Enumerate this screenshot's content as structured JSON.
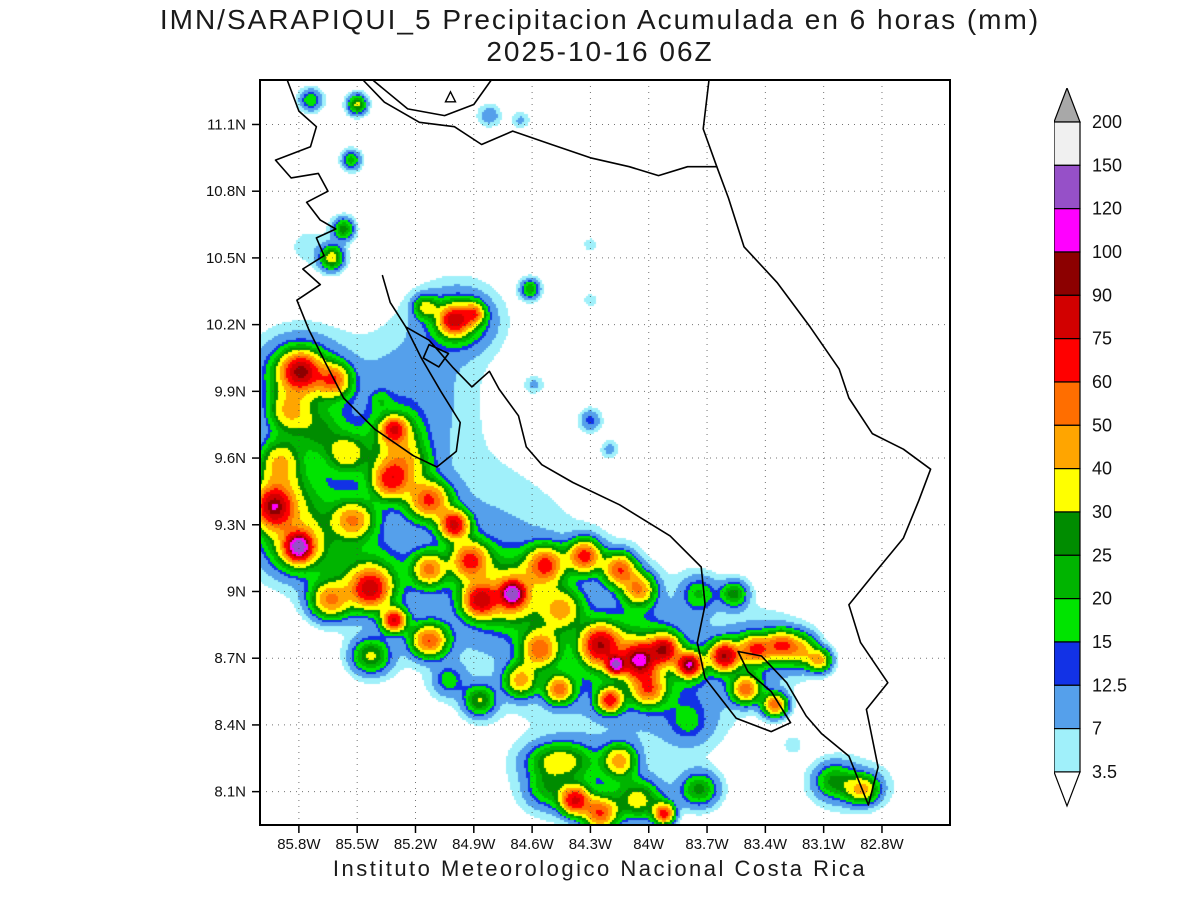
{
  "title": {
    "line1": "IMN/SARAPIQUI_5 Precipitacion Acumulada en 6 horas (mm)",
    "line2": "2025-10-16 06Z"
  },
  "footer": "Instituto Meteorologico Nacional Costa Rica",
  "chart_data": {
    "type": "heatmap",
    "model": "IMN/SARAPIQUI_5",
    "variable": "Precipitacion Acumulada en 6 horas",
    "units": "mm",
    "valid_time": "2025-10-16 06Z",
    "grid": true,
    "legend_position": "right",
    "extent": {
      "lon_left_w": 86.0,
      "lon_right_w": 82.45,
      "lat_top_n": 11.3,
      "lat_bottom_n": 7.95
    },
    "x_tick_labels": [
      "85.8W",
      "85.5W",
      "85.2W",
      "84.9W",
      "84.6W",
      "84.3W",
      "84W",
      "83.7W",
      "83.4W",
      "83.1W",
      "82.8W"
    ],
    "x_tick_values": [
      85.8,
      85.5,
      85.2,
      84.9,
      84.6,
      84.3,
      84.0,
      83.7,
      83.4,
      83.1,
      82.8
    ],
    "y_tick_labels": [
      "11.1N",
      "10.8N",
      "10.5N",
      "10.2N",
      "9.9N",
      "9.6N",
      "9.3N",
      "9N",
      "8.7N",
      "8.4N",
      "8.1N"
    ],
    "y_tick_values": [
      11.1,
      10.8,
      10.5,
      10.2,
      9.9,
      9.6,
      9.3,
      9.0,
      8.7,
      8.4,
      8.1
    ],
    "levels": [
      3.5,
      7,
      12.5,
      15,
      20,
      25,
      30,
      40,
      50,
      60,
      75,
      90,
      100,
      120,
      150,
      200
    ],
    "colors": [
      "#a0f0fa",
      "#55a0eb",
      "#1232e6",
      "#00e400",
      "#00b400",
      "#008c00",
      "#ffff00",
      "#ffa500",
      "#ff6e00",
      "#ff0000",
      "#d20000",
      "#8c0000",
      "#ff00ff",
      "#9650c8",
      "#f0f0f0",
      "#a8a8a8"
    ],
    "colorbar_labels": [
      "3.5",
      "7",
      "12.5",
      "15",
      "20",
      "25",
      "30",
      "40",
      "50",
      "60",
      "75",
      "90",
      "100",
      "120",
      "150",
      "200"
    ],
    "under_color": "#ffffff",
    "over_color": "#a8a8a8",
    "bumps": [
      [
        85.74,
        11.21,
        0.06,
        0.05,
        20
      ],
      [
        85.5,
        11.19,
        0.05,
        0.045,
        32
      ],
      [
        84.82,
        11.14,
        0.06,
        0.05,
        11
      ],
      [
        84.66,
        11.12,
        0.05,
        0.04,
        8
      ],
      [
        85.53,
        10.94,
        0.05,
        0.045,
        22
      ],
      [
        85.57,
        10.63,
        0.055,
        0.05,
        28
      ],
      [
        85.63,
        10.5,
        0.06,
        0.055,
        34
      ],
      [
        84.61,
        10.36,
        0.05,
        0.045,
        24
      ],
      [
        85.0,
        10.22,
        0.07,
        0.06,
        62
      ],
      [
        84.9,
        10.25,
        0.05,
        0.045,
        42
      ],
      [
        84.97,
        10.22,
        0.16,
        0.12,
        20
      ],
      [
        85.15,
        10.28,
        0.06,
        0.05,
        26
      ],
      [
        84.3,
        10.56,
        0.04,
        0.035,
        6
      ],
      [
        84.59,
        9.93,
        0.05,
        0.04,
        8
      ],
      [
        84.3,
        9.77,
        0.055,
        0.05,
        14
      ],
      [
        84.2,
        9.64,
        0.045,
        0.04,
        9
      ],
      [
        84.3,
        10.31,
        0.04,
        0.035,
        6
      ],
      [
        85.38,
        9.86,
        0.05,
        0.045,
        8
      ],
      [
        85.79,
        9.99,
        0.09,
        0.075,
        70
      ],
      [
        85.8,
        9.98,
        0.2,
        0.16,
        25
      ],
      [
        85.62,
        9.95,
        0.08,
        0.07,
        45
      ],
      [
        85.85,
        9.81,
        0.1,
        0.09,
        30
      ],
      [
        85.7,
        9.72,
        0.12,
        0.1,
        16
      ],
      [
        85.55,
        9.62,
        0.1,
        0.08,
        26
      ],
      [
        85.9,
        9.58,
        0.1,
        0.1,
        32
      ],
      [
        85.93,
        9.38,
        0.08,
        0.08,
        65
      ],
      [
        85.9,
        9.4,
        0.16,
        0.14,
        26
      ],
      [
        85.8,
        9.2,
        0.055,
        0.05,
        95
      ],
      [
        85.8,
        9.2,
        0.12,
        0.1,
        35
      ],
      [
        85.78,
        9.25,
        0.26,
        0.2,
        15
      ],
      [
        85.52,
        9.32,
        0.1,
        0.08,
        40
      ],
      [
        85.33,
        9.5,
        0.09,
        0.08,
        52
      ],
      [
        85.25,
        9.57,
        0.12,
        0.1,
        28
      ],
      [
        85.31,
        9.73,
        0.06,
        0.05,
        46
      ],
      [
        85.3,
        9.7,
        0.12,
        0.1,
        24
      ],
      [
        85.13,
        9.41,
        0.1,
        0.08,
        55
      ],
      [
        85.0,
        9.3,
        0.07,
        0.06,
        72
      ],
      [
        84.92,
        9.14,
        0.09,
        0.08,
        55
      ],
      [
        85.13,
        9.1,
        0.08,
        0.07,
        45
      ],
      [
        85.43,
        9.01,
        0.09,
        0.08,
        62
      ],
      [
        85.45,
        9.05,
        0.18,
        0.14,
        22
      ],
      [
        85.64,
        8.96,
        0.1,
        0.08,
        45
      ],
      [
        85.31,
        8.87,
        0.06,
        0.05,
        70
      ],
      [
        85.13,
        8.78,
        0.09,
        0.07,
        55
      ],
      [
        85.43,
        8.71,
        0.1,
        0.08,
        30
      ],
      [
        85.03,
        8.6,
        0.08,
        0.07,
        15
      ],
      [
        84.87,
        8.51,
        0.08,
        0.07,
        28
      ],
      [
        84.87,
        8.96,
        0.08,
        0.07,
        66
      ],
      [
        84.7,
        8.99,
        0.05,
        0.045,
        90
      ],
      [
        84.7,
        8.98,
        0.11,
        0.1,
        30
      ],
      [
        84.72,
        9.0,
        0.2,
        0.17,
        18
      ],
      [
        84.53,
        9.12,
        0.09,
        0.08,
        55
      ],
      [
        84.33,
        9.16,
        0.08,
        0.07,
        62
      ],
      [
        84.15,
        9.1,
        0.08,
        0.07,
        55
      ],
      [
        84.05,
        9.01,
        0.08,
        0.07,
        45
      ],
      [
        84.45,
        8.92,
        0.1,
        0.09,
        35
      ],
      [
        84.25,
        8.76,
        0.09,
        0.08,
        70
      ],
      [
        84.05,
        8.69,
        0.08,
        0.07,
        80
      ],
      [
        84.17,
        8.67,
        0.04,
        0.035,
        95
      ],
      [
        83.92,
        8.74,
        0.07,
        0.06,
        70
      ],
      [
        83.79,
        8.67,
        0.06,
        0.05,
        90
      ],
      [
        84.1,
        8.72,
        0.22,
        0.15,
        18
      ],
      [
        84.56,
        8.74,
        0.09,
        0.08,
        50
      ],
      [
        84.66,
        8.6,
        0.08,
        0.07,
        40
      ],
      [
        84.46,
        8.56,
        0.07,
        0.06,
        50
      ],
      [
        84.2,
        8.51,
        0.06,
        0.05,
        62
      ],
      [
        84.0,
        8.56,
        0.08,
        0.07,
        45
      ],
      [
        83.61,
        8.71,
        0.07,
        0.06,
        80
      ],
      [
        83.45,
        8.74,
        0.08,
        0.06,
        52
      ],
      [
        83.32,
        8.76,
        0.07,
        0.06,
        45
      ],
      [
        83.22,
        8.74,
        0.08,
        0.07,
        35
      ],
      [
        83.12,
        8.69,
        0.06,
        0.05,
        40
      ],
      [
        83.5,
        8.56,
        0.07,
        0.06,
        50
      ],
      [
        83.35,
        8.49,
        0.06,
        0.05,
        55
      ],
      [
        83.74,
        8.99,
        0.09,
        0.08,
        18
      ],
      [
        83.56,
        8.99,
        0.07,
        0.06,
        26
      ],
      [
        83.4,
        8.73,
        0.22,
        0.16,
        12
      ],
      [
        83.79,
        8.4,
        0.12,
        0.1,
        10
      ],
      [
        84.46,
        8.24,
        0.16,
        0.08,
        30
      ],
      [
        84.53,
        8.11,
        0.1,
        0.08,
        15
      ],
      [
        84.38,
        8.06,
        0.07,
        0.06,
        68
      ],
      [
        84.25,
        8.0,
        0.08,
        0.07,
        55
      ],
      [
        84.05,
        8.06,
        0.12,
        0.09,
        30
      ],
      [
        83.92,
        8.0,
        0.05,
        0.045,
        62
      ],
      [
        83.74,
        8.11,
        0.1,
        0.08,
        26
      ],
      [
        84.15,
        8.24,
        0.08,
        0.07,
        40
      ],
      [
        84.35,
        8.12,
        0.3,
        0.15,
        10
      ],
      [
        83.05,
        8.15,
        0.1,
        0.08,
        20
      ],
      [
        82.9,
        8.11,
        0.08,
        0.06,
        36
      ],
      [
        82.95,
        8.13,
        0.2,
        0.12,
        9
      ],
      [
        83.26,
        8.31,
        0.05,
        0.045,
        6
      ],
      [
        85.6,
        9.6,
        0.45,
        0.4,
        10
      ],
      [
        84.9,
        9.1,
        0.5,
        0.45,
        10
      ],
      [
        84.2,
        8.7,
        0.45,
        0.4,
        10
      ],
      [
        85.2,
        9.9,
        0.3,
        0.28,
        8
      ],
      [
        83.8,
        8.6,
        0.3,
        0.25,
        8
      ],
      [
        85.75,
        10.55,
        0.12,
        0.1,
        5
      ],
      [
        85.0,
        10.22,
        0.25,
        0.2,
        6
      ]
    ],
    "coastlines": [
      [
        [
          85.86,
          11.3
        ],
        [
          85.8,
          11.16
        ],
        [
          85.71,
          11.09
        ],
        [
          85.74,
          11.0
        ],
        [
          85.92,
          10.94
        ],
        [
          85.84,
          10.86
        ],
        [
          85.7,
          10.88
        ],
        [
          85.65,
          10.8
        ],
        [
          85.76,
          10.75
        ],
        [
          85.69,
          10.67
        ],
        [
          85.61,
          10.63
        ],
        [
          85.71,
          10.59
        ],
        [
          85.67,
          10.51
        ],
        [
          85.78,
          10.45
        ],
        [
          85.69,
          10.38
        ],
        [
          85.81,
          10.31
        ],
        [
          85.75,
          10.18
        ],
        [
          85.67,
          10.04
        ],
        [
          85.57,
          9.87
        ],
        [
          85.41,
          9.73
        ],
        [
          85.21,
          9.61
        ],
        [
          85.09,
          9.56
        ],
        [
          84.99,
          9.63
        ],
        [
          84.97,
          9.76
        ],
        [
          85.07,
          9.9
        ],
        [
          85.17,
          10.05
        ],
        [
          85.25,
          10.19
        ],
        [
          85.13,
          10.13
        ],
        [
          85.01,
          10.01
        ],
        [
          84.91,
          9.92
        ],
        [
          84.82,
          9.99
        ],
        [
          84.77,
          9.91
        ],
        [
          84.67,
          9.79
        ],
        [
          84.63,
          9.65
        ],
        [
          84.55,
          9.57
        ],
        [
          84.39,
          9.49
        ],
        [
          84.15,
          9.39
        ],
        [
          83.89,
          9.25
        ],
        [
          83.73,
          9.11
        ],
        [
          83.71,
          8.94
        ],
        [
          83.75,
          8.77
        ],
        [
          83.71,
          8.61
        ],
        [
          83.55,
          8.43
        ],
        [
          83.37,
          8.37
        ],
        [
          83.27,
          8.41
        ],
        [
          83.37,
          8.55
        ],
        [
          83.49,
          8.64
        ],
        [
          83.54,
          8.73
        ],
        [
          83.42,
          8.71
        ],
        [
          83.29,
          8.59
        ],
        [
          83.19,
          8.44
        ],
        [
          83.11,
          8.36
        ],
        [
          82.97,
          8.26
        ],
        [
          82.87,
          8.04
        ],
        [
          82.82,
          8.21
        ],
        [
          82.88,
          8.47
        ],
        [
          82.77,
          8.59
        ],
        [
          82.91,
          8.77
        ],
        [
          82.97,
          8.94
        ],
        [
          82.85,
          9.07
        ],
        [
          82.69,
          9.24
        ],
        [
          82.61,
          9.41
        ],
        [
          82.55,
          9.55
        ],
        [
          82.69,
          9.64
        ],
        [
          82.85,
          9.71
        ],
        [
          82.97,
          9.87
        ],
        [
          83.02,
          10.0
        ],
        [
          83.17,
          10.19
        ],
        [
          83.34,
          10.39
        ],
        [
          83.51,
          10.55
        ],
        [
          83.59,
          10.77
        ],
        [
          83.65,
          10.91
        ],
        [
          83.8,
          10.91
        ],
        [
          83.95,
          10.87
        ],
        [
          84.1,
          10.91
        ],
        [
          84.3,
          10.95
        ],
        [
          84.5,
          11.01
        ],
        [
          84.7,
          11.07
        ],
        [
          84.86,
          11.01
        ],
        [
          85.0,
          11.09
        ],
        [
          85.18,
          11.11
        ],
        [
          85.36,
          11.2
        ],
        [
          85.47,
          11.3
        ]
      ],
      [
        [
          85.42,
          11.3
        ],
        [
          85.24,
          11.17
        ],
        [
          85.05,
          11.14
        ],
        [
          84.9,
          11.19
        ],
        [
          84.81,
          11.3
        ]
      ],
      [
        [
          83.65,
          10.91
        ],
        [
          83.72,
          11.08
        ],
        [
          83.69,
          11.3
        ]
      ],
      [
        [
          85.13,
          10.11
        ],
        [
          85.03,
          10.07
        ],
        [
          85.08,
          10.01
        ],
        [
          85.16,
          10.05
        ],
        [
          85.13,
          10.11
        ]
      ],
      [
        [
          85.25,
          10.19
        ],
        [
          85.33,
          10.3
        ],
        [
          85.37,
          10.42
        ]
      ]
    ],
    "island_triangle": [
      85.02,
      11.22
    ]
  }
}
